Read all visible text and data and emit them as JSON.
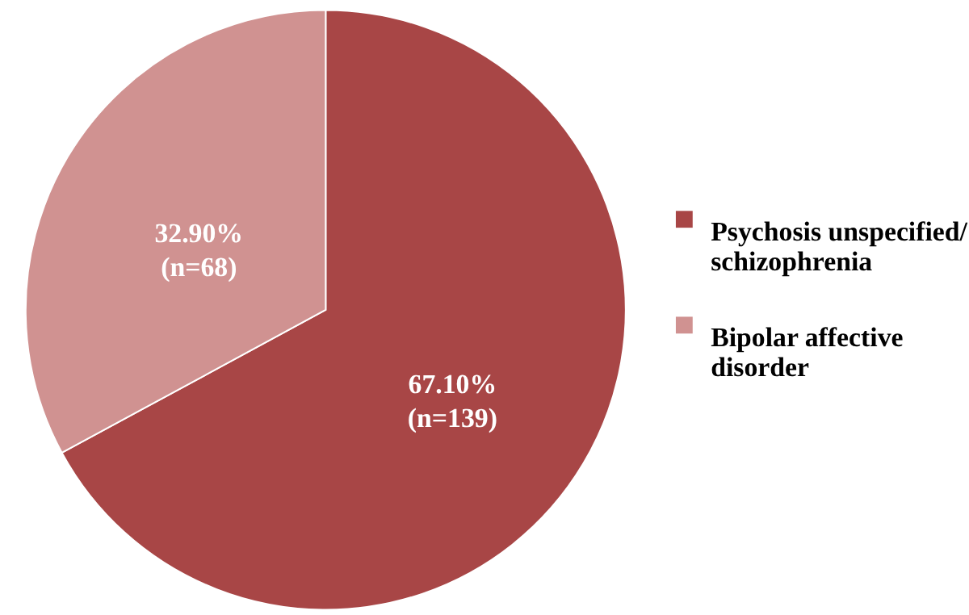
{
  "chart_data": {
    "type": "pie",
    "categories": [
      "Psychosis unspecified/ schizophrenia",
      "Bipolar affective disorder"
    ],
    "values": [
      67.1,
      32.9
    ],
    "colors": [
      "#a84646",
      "#d09291"
    ],
    "value_labels": [
      "67.10% (n=139)",
      "32.90% (n=68)"
    ],
    "legend": "right"
  }
}
